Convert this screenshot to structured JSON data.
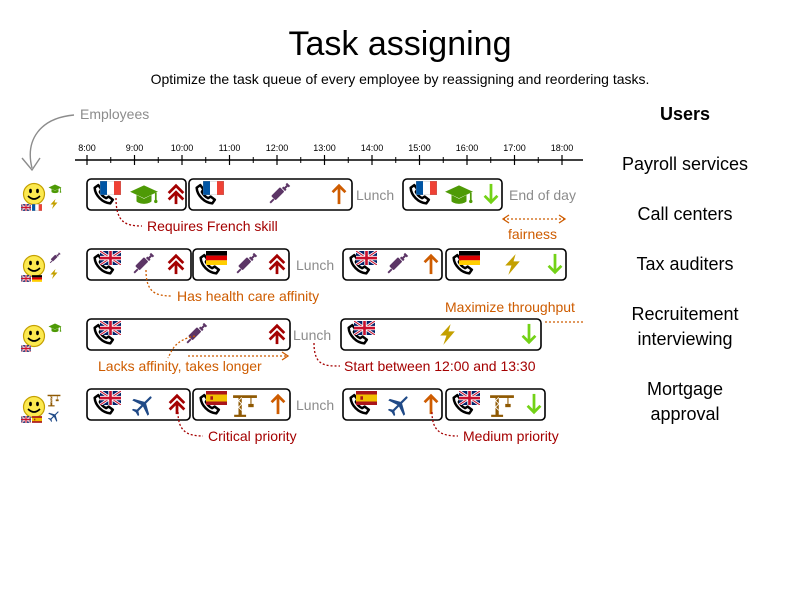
{
  "title": "Task assigning",
  "subtitle": "Optimize the task queue of every employee by reassigning and reordering tasks.",
  "employees_label": "Employees",
  "timeline": [
    "8:00",
    "9:00",
    "10:00",
    "11:00",
    "12:00",
    "13:00",
    "14:00",
    "15:00",
    "16:00",
    "17:00",
    "18:00"
  ],
  "users": {
    "heading": "Users",
    "items": [
      "Payroll services",
      "Call centers",
      "Tax auditers",
      "Recruitement\ninterviewing",
      "Mortgage\napproval"
    ]
  },
  "labels": {
    "lunch": "Lunch",
    "end_of_day": "End of day"
  },
  "annotations": {
    "requires_french": "Requires French skill",
    "fairness": "fairness",
    "health_care": "Has health care affinity",
    "maximize": "Maximize throughput",
    "lacks_affinity": "Lacks affinity, takes longer",
    "start_between": "Start between 12:00 and 13:30",
    "critical": "Critical priority",
    "medium": "Medium priority"
  },
  "colors": {
    "critical": "#a40000",
    "major": "#ce5c00",
    "minor": "#73d216",
    "health": "#5c3566",
    "education": "#4e9a06",
    "insurance": "#c4a000",
    "travel": "#204a87",
    "construction": "#8f5902",
    "annotation_red": "#a40000",
    "annotation_orange": "#ce5c00",
    "muted": "#8c8c8c"
  },
  "icons": [
    "phone-icon",
    "flag-fr-icon",
    "flag-uk-icon",
    "flag-de-icon",
    "flag-es-icon",
    "graduation-cap-icon",
    "syringe-icon",
    "lightning-icon",
    "airplane-icon",
    "crane-icon",
    "priority-critical-icon",
    "priority-major-icon",
    "priority-minor-icon",
    "employee-smiley-icon"
  ]
}
